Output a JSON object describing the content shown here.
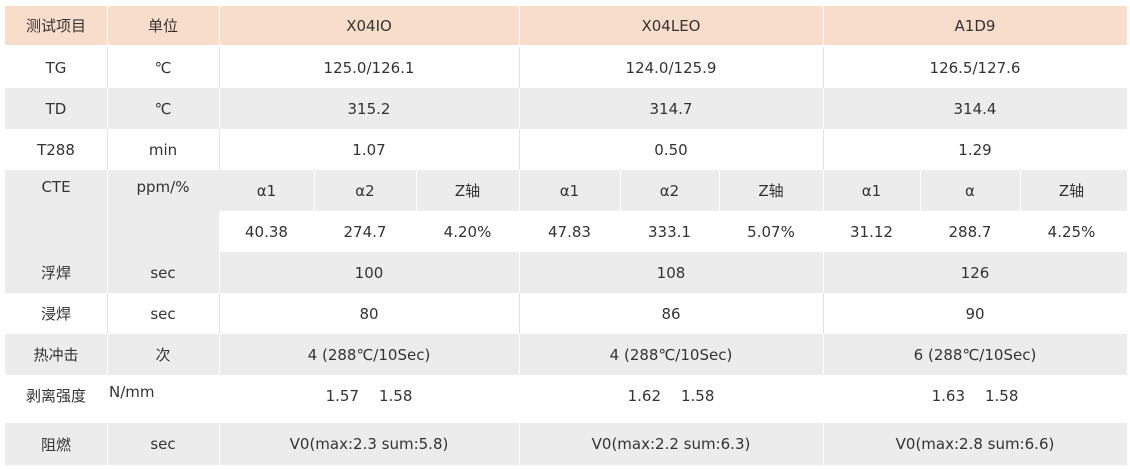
{
  "header": {
    "item": "测试项目",
    "unit": "单位",
    "p1": "X04IO",
    "p2": "X04LEO",
    "p3": "A1D9"
  },
  "rows": {
    "tg": {
      "label": "TG",
      "unit": "℃",
      "p1": "125.0/126.1",
      "p2": "124.0/125.9",
      "p3": "126.5/127.6"
    },
    "td": {
      "label": "TD",
      "unit": "℃",
      "p1": "315.2",
      "p2": "314.7",
      "p3": "314.4"
    },
    "t288": {
      "label": "T288",
      "unit": "min",
      "p1": "1.07",
      "p2": "0.50",
      "p3": "1.29"
    },
    "cte": {
      "label": "CTE",
      "unit": "ppm/%",
      "sub": [
        "α1",
        "α2",
        "Z轴",
        "α1",
        "α2",
        "Z轴",
        "α1",
        "α",
        "Z轴"
      ],
      "vals": [
        "40.38",
        "274.7",
        "4.20%",
        "47.83",
        "333.1",
        "5.07%",
        "31.12",
        "288.7",
        "4.25%"
      ]
    },
    "float_solder": {
      "label": "浮焊",
      "unit": "sec",
      "p1": "100",
      "p2": "108",
      "p3": "126"
    },
    "dip_solder": {
      "label": "浸焊",
      "unit": "sec",
      "p1": "80",
      "p2": "86",
      "p3": "90"
    },
    "thermal_shock": {
      "label": "热冲击",
      "unit": "次",
      "p1": "4 (288℃/10Sec)",
      "p2": "4 (288℃/10Sec)",
      "p3": "6 (288℃/10Sec)"
    },
    "peel": {
      "label": "剥离强度",
      "unit": "N/mm",
      "p1a": "1.57",
      "p1b": "1.58",
      "p2a": "1.62",
      "p2b": "1.58",
      "p3a": "1.63",
      "p3b": "1.58"
    },
    "flame": {
      "label": "阻燃",
      "unit": "sec",
      "p1": "V0(max:2.3 sum:5.8)",
      "p2": "V0(max:2.2 sum:6.3)",
      "p3": "V0(max:2.8 sum:6.6)"
    }
  }
}
